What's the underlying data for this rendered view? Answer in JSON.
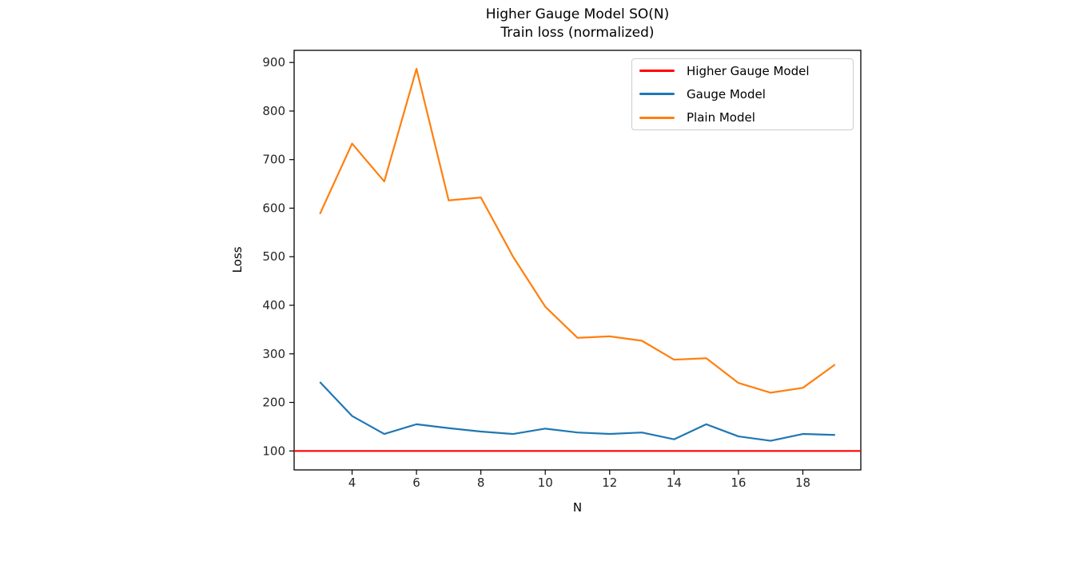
{
  "title": {
    "line1": "Higher Gauge Model SO(N)",
    "line2": "Train loss (normalized)"
  },
  "chart_data": {
    "type": "line",
    "title": "Higher Gauge Model SO(N)\nTrain loss (normalized)",
    "xlabel": "N",
    "ylabel": "Loss",
    "x": [
      3,
      4,
      5,
      6,
      7,
      8,
      9,
      10,
      11,
      12,
      13,
      14,
      15,
      16,
      17,
      18,
      19
    ],
    "series": [
      {
        "name": "Higher Gauge Model",
        "color": "#ff0000",
        "axhline": true,
        "values": [
          100,
          100,
          100,
          100,
          100,
          100,
          100,
          100,
          100,
          100,
          100,
          100,
          100,
          100,
          100,
          100,
          100
        ]
      },
      {
        "name": "Gauge Model",
        "color": "#1f77b4",
        "axhline": false,
        "values": [
          242,
          172,
          135,
          155,
          147,
          140,
          135,
          146,
          138,
          135,
          138,
          124,
          155,
          130,
          121,
          135,
          133
        ]
      },
      {
        "name": "Plain Model",
        "color": "#ff7f0e",
        "axhline": false,
        "values": [
          588,
          733,
          655,
          887,
          616,
          622,
          500,
          397,
          333,
          336,
          327,
          288,
          291,
          240,
          220,
          230,
          278
        ]
      }
    ],
    "xlim": [
      2.2,
      19.8
    ],
    "ylim": [
      61,
      925
    ],
    "xticks": [
      4,
      6,
      8,
      10,
      12,
      14,
      16,
      18
    ],
    "yticks": [
      100,
      200,
      300,
      400,
      500,
      600,
      700,
      800,
      900
    ],
    "grid": false,
    "legend_position": "upper right",
    "axis_color": "#000000",
    "tick_label_color": "#262626"
  }
}
